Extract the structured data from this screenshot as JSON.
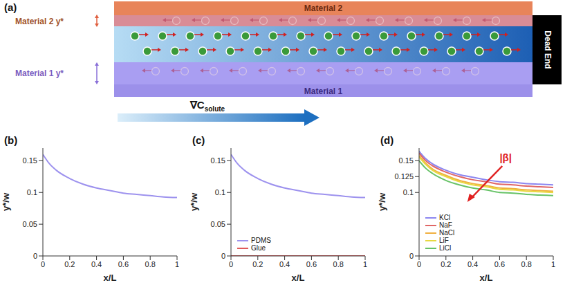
{
  "diagram": {
    "panel_label": "(a)",
    "top_material": "Material 2",
    "top_layer_label": "Material 2 y*",
    "channel_end_label": "Dead End",
    "bottom_layer_label": "Material 1 y*",
    "bottom_material": "Material 1",
    "gradient_label": "∇C",
    "gradient_label_sub": "solute"
  },
  "chart_data": [
    {
      "panel_label": "(b)",
      "type": "line",
      "x_label": "x/L",
      "y_label": "y*/w",
      "x": [
        0,
        0.05,
        0.1,
        0.2,
        0.3,
        0.4,
        0.5,
        0.6,
        0.7,
        0.8,
        0.9,
        1
      ],
      "xlim": [
        0,
        1
      ],
      "xticks": [
        0,
        0.2,
        0.4,
        0.6,
        0.8,
        1
      ],
      "ylim": [
        0,
        0.17
      ],
      "yticks": [
        0,
        0.05,
        0.1,
        0.15
      ],
      "series": [
        {
          "color": "#9d92ee",
          "values": [
            0.16,
            0.145,
            0.135,
            0.122,
            0.113,
            0.107,
            0.103,
            0.099,
            0.097,
            0.095,
            0.093,
            0.092
          ]
        }
      ]
    },
    {
      "panel_label": "(c)",
      "type": "line",
      "x_label": "x/L",
      "y_label": "y*/w",
      "x": [
        0,
        0.05,
        0.1,
        0.2,
        0.3,
        0.4,
        0.5,
        0.6,
        0.7,
        0.8,
        0.9,
        1
      ],
      "xlim": [
        0,
        1
      ],
      "xticks": [
        0,
        0.2,
        0.4,
        0.6,
        0.8,
        1
      ],
      "ylim": [
        0,
        0.17
      ],
      "yticks": [
        0,
        0.05,
        0.1,
        0.15
      ],
      "legend": "lower left",
      "series": [
        {
          "name": "PDMS",
          "color": "#9d92ee",
          "values": [
            0.16,
            0.145,
            0.135,
            0.122,
            0.113,
            0.107,
            0.103,
            0.099,
            0.097,
            0.095,
            0.093,
            0.092
          ]
        },
        {
          "name": "Glue",
          "color": "#e05a5a",
          "values": [
            0,
            0,
            0,
            0,
            0,
            0,
            0,
            0,
            0,
            0,
            0,
            0
          ]
        }
      ]
    },
    {
      "panel_label": "(d)",
      "type": "line",
      "x_label": "x/L",
      "y_label": "y*/w",
      "annotation": "|β|",
      "x": [
        0,
        0.05,
        0.1,
        0.2,
        0.3,
        0.4,
        0.5,
        0.6,
        0.7,
        0.8,
        0.9,
        1
      ],
      "xlim": [
        0,
        1
      ],
      "xticks": [
        0,
        0.2,
        0.4,
        0.6,
        0.8,
        1
      ],
      "ylim": [
        0,
        0.17
      ],
      "yticks": [
        0,
        0.1,
        0.125,
        0.15
      ],
      "legend": "lower left",
      "series": [
        {
          "name": "KCl",
          "color": "#8c86f0",
          "values": [
            0.165,
            0.153,
            0.145,
            0.135,
            0.128,
            0.124,
            0.12,
            0.117,
            0.116,
            0.114,
            0.113,
            0.112
          ]
        },
        {
          "name": "NaF",
          "color": "#e06666",
          "values": [
            0.162,
            0.15,
            0.142,
            0.132,
            0.125,
            0.12,
            0.117,
            0.113,
            0.112,
            0.11,
            0.109,
            0.108
          ]
        },
        {
          "name": "NaCl",
          "color": "#f0b040",
          "values": [
            0.158,
            0.146,
            0.137,
            0.127,
            0.119,
            0.114,
            0.111,
            0.107,
            0.106,
            0.104,
            0.103,
            0.102
          ]
        },
        {
          "name": "LiF",
          "color": "#e8d840",
          "values": [
            0.156,
            0.144,
            0.135,
            0.125,
            0.117,
            0.112,
            0.109,
            0.105,
            0.104,
            0.102,
            0.101,
            0.1
          ]
        },
        {
          "name": "LiCl",
          "color": "#66c266",
          "values": [
            0.15,
            0.138,
            0.13,
            0.119,
            0.112,
            0.107,
            0.104,
            0.1,
            0.099,
            0.097,
            0.096,
            0.095
          ]
        }
      ]
    }
  ]
}
